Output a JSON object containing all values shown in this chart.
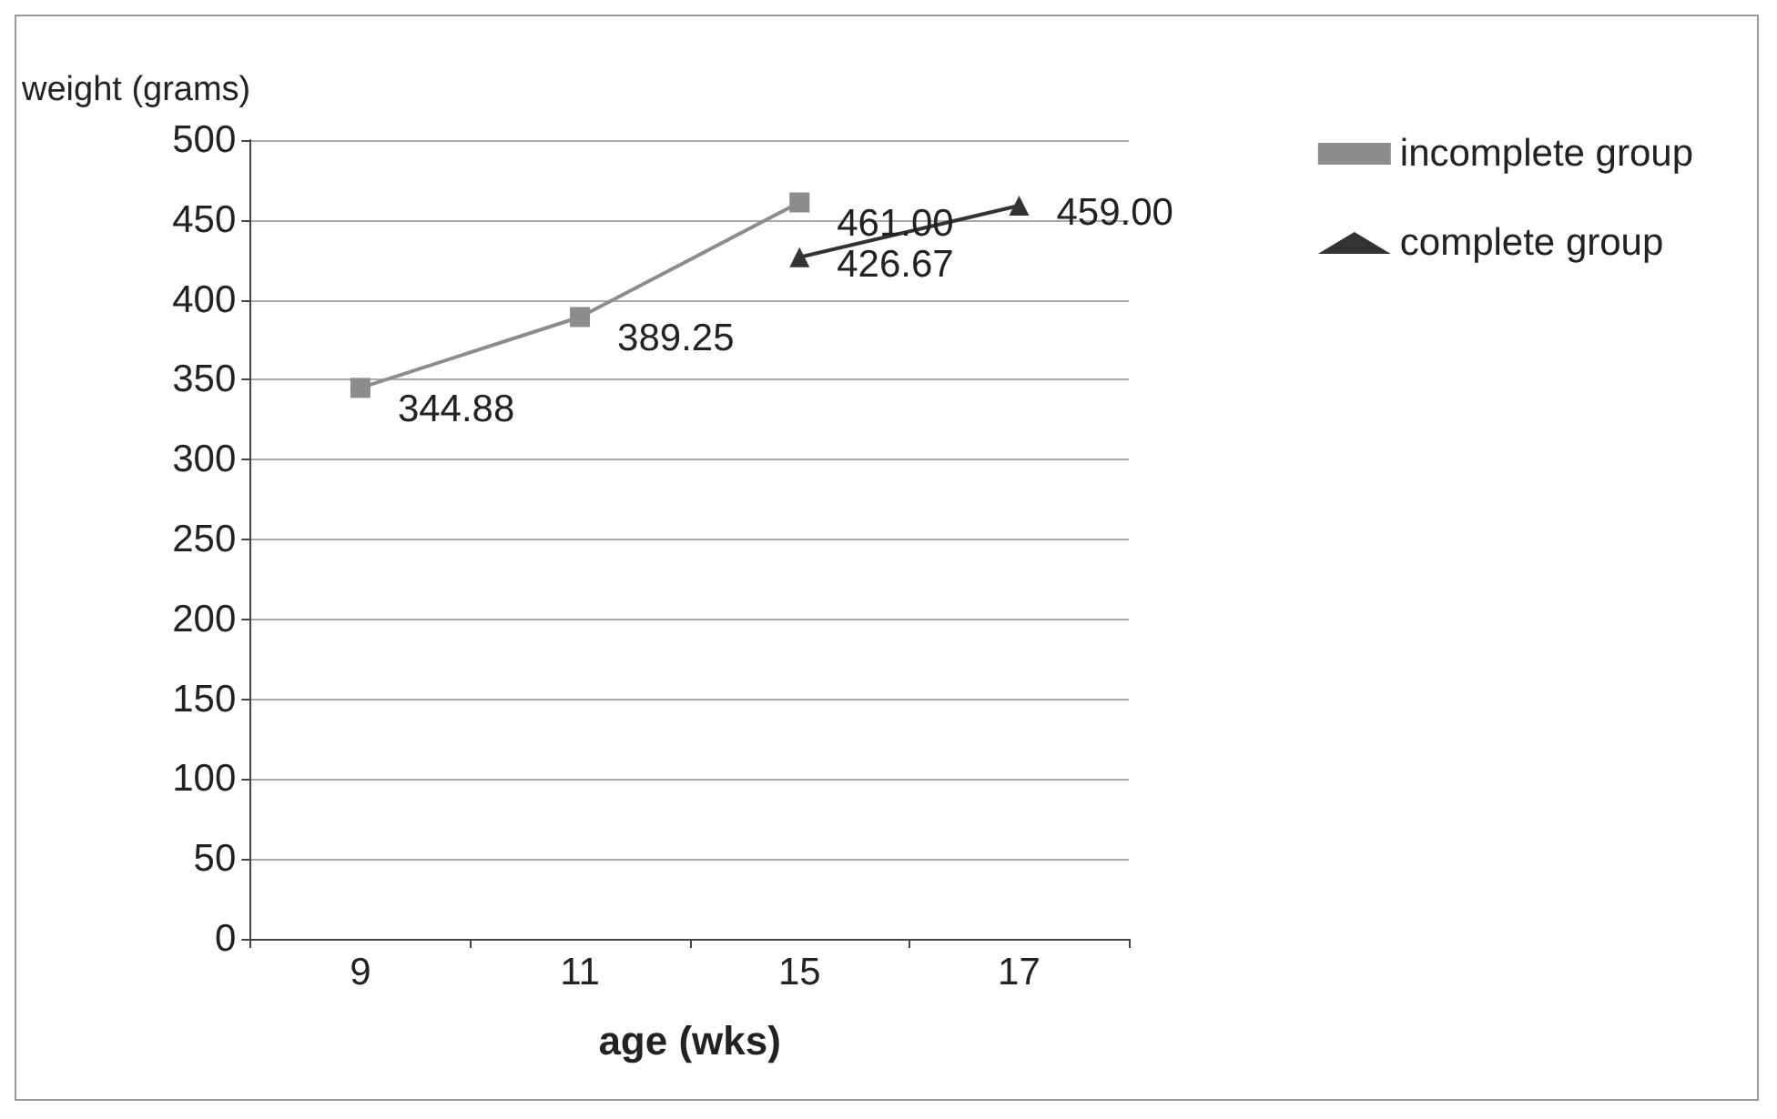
{
  "chart_data": {
    "type": "line",
    "xlabel": "age (wks)",
    "ylabel": "weight (grams)",
    "categories": [
      "9",
      "11",
      "15",
      "17"
    ],
    "series": [
      {
        "name": "incomplete group",
        "color": "#8c8c8c",
        "marker": "square",
        "values": [
          344.88,
          389.25,
          461.0,
          null
        ],
        "value_labels": [
          "344.88",
          "389.25",
          "461.00",
          null
        ]
      },
      {
        "name": "complete group",
        "color": "#333333",
        "marker": "triangle",
        "values": [
          null,
          null,
          426.67,
          459.0
        ],
        "value_labels": [
          null,
          null,
          "426.67",
          "459.00"
        ]
      }
    ],
    "ylim": [
      0,
      500
    ],
    "yticks": [
      0,
      50,
      100,
      150,
      200,
      250,
      300,
      350,
      400,
      450,
      500
    ],
    "grid": "y",
    "legend": "right"
  }
}
